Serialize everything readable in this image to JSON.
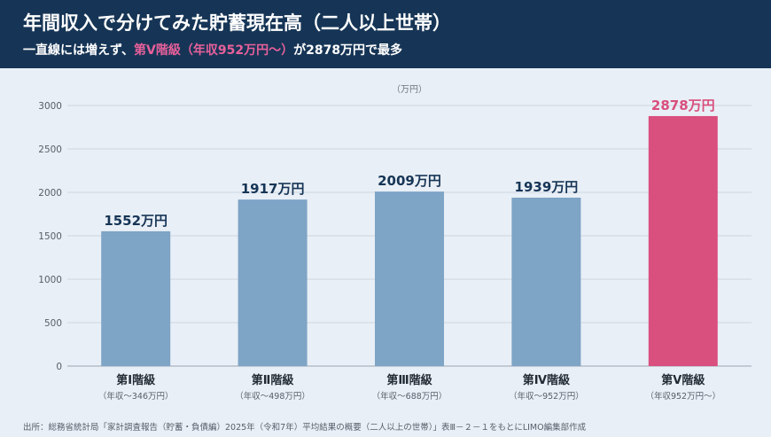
{
  "header": {
    "title": "年間収入で分けてみた貯蓄現在高（二人以上世帯）",
    "subtitle_pre": "一直線には増えず、",
    "subtitle_highlight": "第Ⅴ階級（年収952万円～）",
    "subtitle_post": "が2878万円で最多"
  },
  "colors": {
    "header_bg": "#163556",
    "bar": "#7ea4c6",
    "bar_highlight": "#d94f7d",
    "label": "#163556"
  },
  "chart_data": {
    "type": "bar",
    "unit_label": "（万円）",
    "categories": [
      "第Ⅰ階級",
      "第Ⅱ階級",
      "第Ⅲ階級",
      "第Ⅳ階級",
      "第Ⅴ階級"
    ],
    "subcategories": [
      "（年収～346万円）",
      "（年収～498万円）",
      "（年収～688万円）",
      "（年収～952万円）",
      "（年収952万円～）"
    ],
    "values": [
      1552,
      1917,
      2009,
      1939,
      2878
    ],
    "data_labels": [
      "1552万円",
      "1917万円",
      "2009万円",
      "1939万円",
      "2878万円"
    ],
    "highlight_index": 4,
    "ylim": [
      0,
      3000
    ],
    "yticks": [
      0,
      500,
      1000,
      1500,
      2000,
      2500,
      3000
    ],
    "grid": true
  },
  "source": "出所：総務省統計局「家計調査報告（貯蓄・負債編）2025年（令和7年）平均結果の概要（二人以上の世帯）」表Ⅲ－２－１をもとにLIMO編集部作成"
}
